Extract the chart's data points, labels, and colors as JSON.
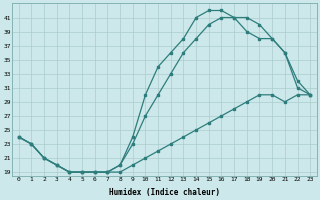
{
  "title": "",
  "xlabel": "Humidex (Indice chaleur)",
  "bg_color": "#cce8ea",
  "grid_color": "#aacccc",
  "line_color": "#2e7d7d",
  "xlim": [
    -0.5,
    23.5
  ],
  "ylim": [
    18.5,
    43
  ],
  "xticks": [
    0,
    1,
    2,
    3,
    4,
    5,
    6,
    7,
    8,
    9,
    10,
    11,
    12,
    13,
    14,
    15,
    16,
    17,
    18,
    19,
    20,
    21,
    22,
    23
  ],
  "yticks": [
    19,
    21,
    23,
    25,
    27,
    29,
    31,
    33,
    35,
    37,
    39,
    41
  ],
  "curve1_x": [
    0,
    1,
    2,
    3,
    4,
    5,
    6,
    7,
    8,
    9,
    10,
    11,
    12,
    13,
    14,
    15,
    16,
    17,
    18,
    19,
    20,
    21,
    22,
    23
  ],
  "curve1_y": [
    24,
    23,
    21,
    20,
    19,
    19,
    19,
    19,
    20,
    24,
    30,
    34,
    36,
    38,
    41,
    42,
    42,
    41,
    41,
    40,
    38,
    36,
    32,
    30
  ],
  "curve2_x": [
    0,
    1,
    2,
    3,
    4,
    5,
    6,
    7,
    8,
    9,
    10,
    11,
    12,
    13,
    14,
    15,
    16,
    17,
    18,
    19,
    20,
    21,
    22,
    23
  ],
  "curve2_y": [
    24,
    23,
    21,
    20,
    19,
    19,
    19,
    19,
    20,
    23,
    27,
    30,
    33,
    36,
    38,
    40,
    41,
    41,
    39,
    38,
    38,
    36,
    31,
    30
  ],
  "curve3_x": [
    0,
    1,
    2,
    3,
    4,
    5,
    6,
    7,
    8,
    9,
    10,
    11,
    12,
    13,
    14,
    15,
    16,
    17,
    18,
    19,
    20,
    21,
    22,
    23
  ],
  "curve3_y": [
    24,
    23,
    21,
    20,
    19,
    19,
    19,
    19,
    19,
    20,
    21,
    22,
    23,
    24,
    25,
    26,
    27,
    28,
    29,
    30,
    30,
    29,
    30,
    30
  ]
}
